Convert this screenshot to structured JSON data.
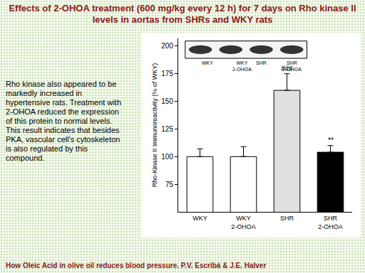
{
  "chart_data": {
    "type": "bar",
    "title": "Effects of 2-OHOA treatment (600 mg/kg every 12 h) for 7 days on Rho kinase II levels in aortas from SHRs and WKY rats",
    "side_text": "Rho kinase also appeared to be markedly increased in hypertensive rats. Treatment with 2-OHOA reduced the expression of this protein to normal levels. This result indicates that besides PKA, vascular cell's cytoskeleton is also regulated by this compound.",
    "footer": "How Oleic Acid in olive oil reduces blood pressure. P.V. Escribá & J.E. Halver",
    "y_label": "Rho-Kinase II Immunoreactivity (% of WKY)",
    "categories": [
      "WKY",
      "WKY 2-OHOA",
      "SHR",
      "SHR 2-OHOA"
    ],
    "values": [
      100,
      100,
      160,
      104
    ],
    "errors": [
      7,
      9,
      15,
      6
    ],
    "colors": [
      "#ffffff",
      "#ffffff",
      "#e0e0e0",
      "#000000"
    ],
    "blot_labels": [
      "WKY",
      "WKY 2-OHOA",
      "SHR",
      "SHR 2-OHOA"
    ],
    "annotations": [
      {
        "category": "SHR",
        "text": "###"
      },
      {
        "category": "SHR 2-OHOA",
        "text": "**"
      }
    ],
    "ylim": [
      50,
      207
    ],
    "yticks": [
      75,
      100,
      125,
      150,
      175,
      200
    ],
    "grid": false
  }
}
